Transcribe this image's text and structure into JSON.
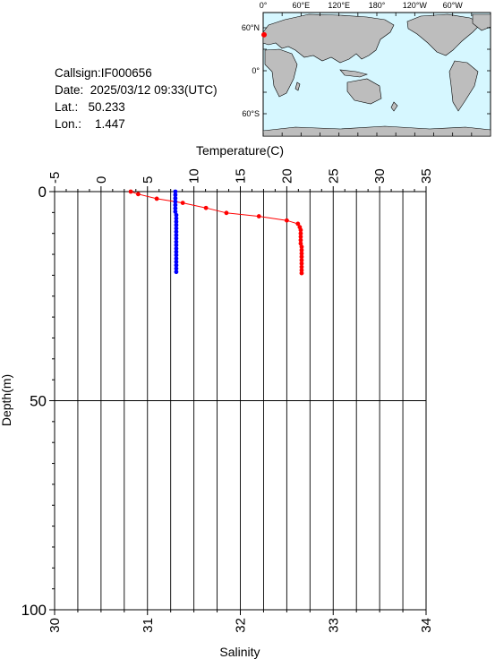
{
  "info": {
    "callsign": "Callsign:IF000656",
    "date": "Date:  2025/03/12 09:33(UTC)",
    "lat": "Lat.:   50.233",
    "lon": "Lon.:    1.447"
  },
  "map": {
    "lon_labels": [
      "0°",
      "60°E",
      "120°E",
      "180°",
      "120°W",
      "60°W"
    ],
    "lat_labels": [
      "60°N",
      "0°",
      "60°S"
    ],
    "colors": {
      "ocean": "#d6f7ff",
      "land": "#bdbdbd",
      "marker": "#ff0000"
    },
    "float_position": {
      "lat": 50.233,
      "lon": 1.447
    }
  },
  "chart_data": {
    "type": "line",
    "title": "",
    "xlabel_top": "Temperature(C)",
    "xlabel_bottom": "Salinity",
    "ylabel": "Depth(m)",
    "temperature_range": [
      -5,
      35
    ],
    "temperature_ticks": [
      "-5",
      "0",
      "5",
      "10",
      "15",
      "20",
      "25",
      "30",
      "35"
    ],
    "salinity_range": [
      30,
      34
    ],
    "salinity_ticks": [
      "30",
      "31",
      "32",
      "33",
      "34"
    ],
    "depth_range": [
      0,
      100
    ],
    "depth_ticks": [
      "0",
      "50",
      "100"
    ],
    "grid": true,
    "series": [
      {
        "variable": "temperature",
        "color": "#ff0000",
        "points": [
          {
            "x": 3.2,
            "depth": 0.0
          },
          {
            "x": 4.0,
            "depth": 0.6
          },
          {
            "x": 6.0,
            "depth": 1.7
          },
          {
            "x": 8.8,
            "depth": 2.7
          },
          {
            "x": 11.3,
            "depth": 3.9
          },
          {
            "x": 13.5,
            "depth": 5.1
          },
          {
            "x": 17.0,
            "depth": 5.9
          },
          {
            "x": 20.0,
            "depth": 6.9
          },
          {
            "x": 21.2,
            "depth": 7.7
          },
          {
            "x": 21.4,
            "depth": 8.5
          },
          {
            "x": 21.5,
            "depth": 9.2
          },
          {
            "x": 21.5,
            "depth": 10.0
          },
          {
            "x": 21.5,
            "depth": 10.8
          },
          {
            "x": 21.5,
            "depth": 11.6
          },
          {
            "x": 21.5,
            "depth": 12.4
          },
          {
            "x": 21.6,
            "depth": 13.2
          },
          {
            "x": 21.6,
            "depth": 14.0
          },
          {
            "x": 21.6,
            "depth": 14.8
          },
          {
            "x": 21.6,
            "depth": 15.6
          },
          {
            "x": 21.6,
            "depth": 16.4
          },
          {
            "x": 21.6,
            "depth": 17.2
          },
          {
            "x": 21.6,
            "depth": 18.0
          },
          {
            "x": 21.6,
            "depth": 18.8
          },
          {
            "x": 21.6,
            "depth": 19.5
          }
        ]
      },
      {
        "variable": "salinity",
        "color": "#0000ff",
        "points": [
          {
            "x": 31.3,
            "depth": 0.0
          },
          {
            "x": 31.3,
            "depth": 0.8
          },
          {
            "x": 31.3,
            "depth": 1.6
          },
          {
            "x": 31.3,
            "depth": 2.4
          },
          {
            "x": 31.3,
            "depth": 3.2
          },
          {
            "x": 31.3,
            "depth": 4.0
          },
          {
            "x": 31.3,
            "depth": 4.8
          },
          {
            "x": 31.31,
            "depth": 5.6
          },
          {
            "x": 31.31,
            "depth": 6.4
          },
          {
            "x": 31.31,
            "depth": 7.2
          },
          {
            "x": 31.31,
            "depth": 8.0
          },
          {
            "x": 31.31,
            "depth": 8.8
          },
          {
            "x": 31.31,
            "depth": 9.6
          },
          {
            "x": 31.31,
            "depth": 10.4
          },
          {
            "x": 31.31,
            "depth": 11.2
          },
          {
            "x": 31.31,
            "depth": 12.0
          },
          {
            "x": 31.31,
            "depth": 12.8
          },
          {
            "x": 31.31,
            "depth": 13.6
          },
          {
            "x": 31.31,
            "depth": 14.4
          },
          {
            "x": 31.31,
            "depth": 15.2
          },
          {
            "x": 31.31,
            "depth": 16.0
          },
          {
            "x": 31.31,
            "depth": 16.8
          },
          {
            "x": 31.31,
            "depth": 17.6
          },
          {
            "x": 31.31,
            "depth": 18.4
          },
          {
            "x": 31.31,
            "depth": 19.2
          }
        ]
      }
    ]
  }
}
